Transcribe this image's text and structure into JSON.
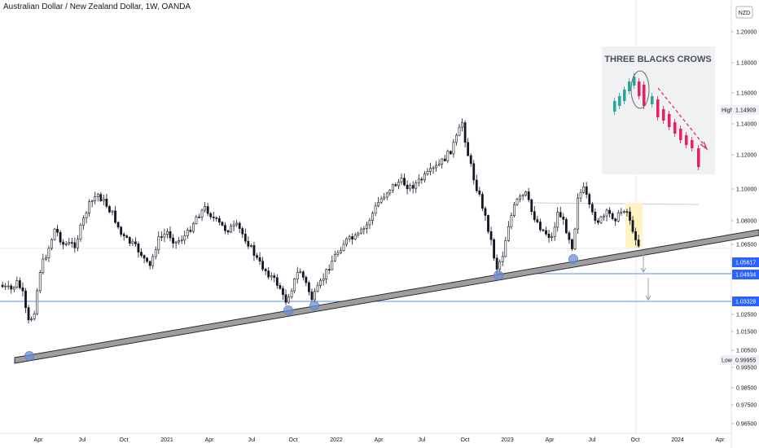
{
  "title": "Australian Dollar / New Zealand Dollar, 1W, OANDA",
  "chart_data": {
    "type": "candlestick",
    "currency_label": "NZD",
    "y_ticks": [
      "1.20000",
      "1.18000",
      "1.16000",
      "1.14000",
      "1.12000",
      "1.10000",
      "1.08000",
      "1.06500",
      "1.02500",
      "1.01500",
      "1.00500",
      "0.99500",
      "0.98500",
      "0.97500",
      "0.96500"
    ],
    "x_ticks": [
      "Apr",
      "Jul",
      "Oct",
      "2021",
      "Apr",
      "Jul",
      "Oct",
      "2022",
      "Apr",
      "Jul",
      "Oct",
      "2023",
      "Apr",
      "Jul",
      "Oct",
      "2024",
      "Apr"
    ],
    "price_tags": [
      {
        "label": "",
        "value": "1.05617",
        "style": "blue-filled"
      },
      {
        "label": "",
        "value": "1.04934",
        "style": "blue-filled"
      },
      {
        "label": "",
        "value": "1.03328",
        "style": "blue-filled"
      },
      {
        "label": "High",
        "value": "1.14909",
        "style": "light"
      },
      {
        "label": "Low",
        "value": "0.99955",
        "style": "light"
      }
    ],
    "trendline": {
      "from": "2020-03",
      "to": "2024-04",
      "touches": [
        "2020-03",
        "2020-09",
        "2020-11",
        "2022-11",
        "2023-05"
      ]
    },
    "highlight_zone": "2023-09",
    "inset_title": "THREE BLACKS CROWS",
    "colors": {
      "bull": "#26a69a",
      "bear": "#131722",
      "trendline": "#9e9e9e",
      "touch": "#6d8fd6",
      "zone": "#fff3c4",
      "tag_blue": "#2962ff",
      "inset_bull": "#26a69a",
      "inset_bear": "#e91e63",
      "arrow": "#e91e63"
    }
  }
}
